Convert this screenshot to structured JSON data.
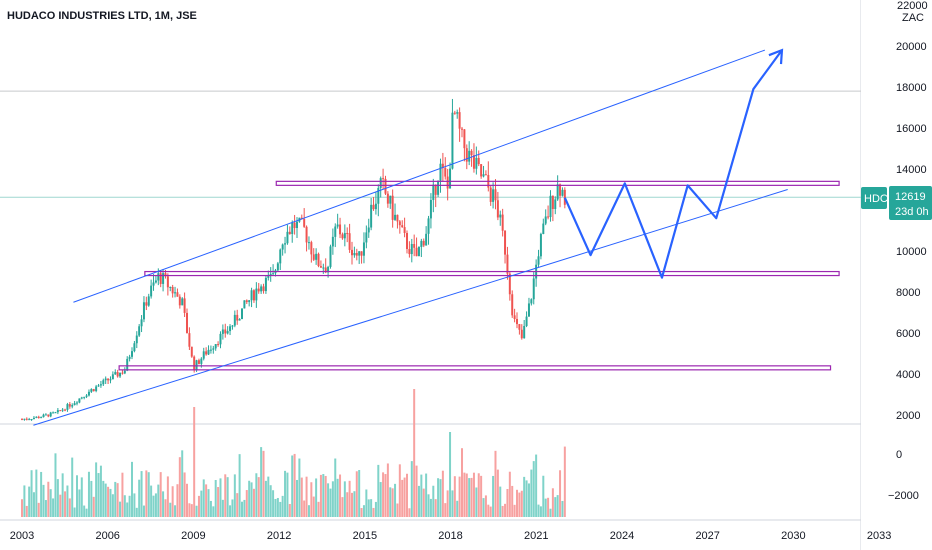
{
  "header": {
    "title": "HUDACO INDUSTRIES LTD, 1M, JSE"
  },
  "price_axis": {
    "currency": "ZAC",
    "top_partial_label": "22000"
  },
  "price_tag": {
    "symbol": "HDC",
    "price": "12619",
    "countdown": "23d 0h",
    "color": "#26a69a"
  },
  "colors": {
    "up": "#26a69a",
    "down": "#ef5350",
    "trend": "#2962ff",
    "level": "#9c27b0",
    "vol_up": "#7fd3c9",
    "vol_down": "#f7a1a0"
  },
  "chart_data": {
    "type": "candlestick",
    "title": "HUDACO INDUSTRIES LTD, 1M, JSE",
    "x_ticks": [
      "2003",
      "2006",
      "2009",
      "2012",
      "2015",
      "2018",
      "2021",
      "2024",
      "2027",
      "2030",
      "2033"
    ],
    "y_ticks": [
      2000,
      4000,
      6000,
      8000,
      10000,
      12000,
      14000,
      16000,
      18000,
      20000
    ],
    "volume_ticks": [
      0,
      -2000
    ],
    "ylim": [
      1600,
      22000
    ],
    "last_price": 12619,
    "price_path": [
      [
        2003.0,
        1800
      ],
      [
        2003.6,
        1900
      ],
      [
        2004.2,
        2100
      ],
      [
        2004.8,
        2600
      ],
      [
        2005.4,
        3200
      ],
      [
        2006.0,
        3700
      ],
      [
        2006.6,
        4200
      ],
      [
        2007.0,
        6000
      ],
      [
        2007.4,
        7800
      ],
      [
        2007.8,
        8800
      ],
      [
        2008.2,
        8200
      ],
      [
        2008.6,
        7500
      ],
      [
        2009.0,
        4300
      ],
      [
        2009.4,
        5000
      ],
      [
        2009.8,
        5600
      ],
      [
        2010.3,
        6300
      ],
      [
        2010.8,
        7300
      ],
      [
        2011.3,
        8300
      ],
      [
        2011.8,
        8700
      ],
      [
        2012.1,
        10600
      ],
      [
        2012.5,
        11300
      ],
      [
        2012.9,
        11000
      ],
      [
        2013.3,
        9500
      ],
      [
        2013.7,
        9200
      ],
      [
        2014.0,
        11200
      ],
      [
        2014.4,
        10500
      ],
      [
        2014.8,
        9600
      ],
      [
        2015.2,
        12000
      ],
      [
        2015.6,
        13200
      ],
      [
        2016.0,
        11800
      ],
      [
        2016.4,
        10500
      ],
      [
        2016.8,
        9700
      ],
      [
        2017.2,
        11200
      ],
      [
        2017.6,
        14200
      ],
      [
        2017.9,
        13000
      ],
      [
        2018.1,
        16800
      ],
      [
        2018.4,
        15300
      ],
      [
        2018.8,
        14200
      ],
      [
        2019.2,
        13400
      ],
      [
        2019.6,
        12300
      ],
      [
        2019.9,
        10200
      ],
      [
        2020.2,
        6700
      ],
      [
        2020.5,
        5700
      ],
      [
        2020.8,
        7600
      ],
      [
        2021.1,
        10200
      ],
      [
        2021.5,
        12300
      ],
      [
        2021.8,
        13300
      ],
      [
        2022.0,
        12619
      ]
    ],
    "levels": [
      {
        "y": 13300,
        "x0": 2011.9,
        "x1": 2031.6
      },
      {
        "y": 8900,
        "x0": 2007.3,
        "x1": 2031.6
      },
      {
        "y": 4300,
        "x0": 2006.4,
        "x1": 2031.3
      }
    ],
    "trendlines": [
      {
        "x0": 2004.8,
        "y0": 7500,
        "x1": 2029.0,
        "y1": 19800
      },
      {
        "x0": 2003.4,
        "y0": 1500,
        "x1": 2029.8,
        "y1": 13000
      }
    ],
    "projection": [
      [
        2022.0,
        12600
      ],
      [
        2022.9,
        9800
      ],
      [
        2024.1,
        13300
      ],
      [
        2025.4,
        8700
      ],
      [
        2026.3,
        13200
      ],
      [
        2027.3,
        11600
      ],
      [
        2028.6,
        17900
      ],
      [
        2029.6,
        19800
      ]
    ],
    "reference_lines": [
      17800,
      12619
    ]
  }
}
